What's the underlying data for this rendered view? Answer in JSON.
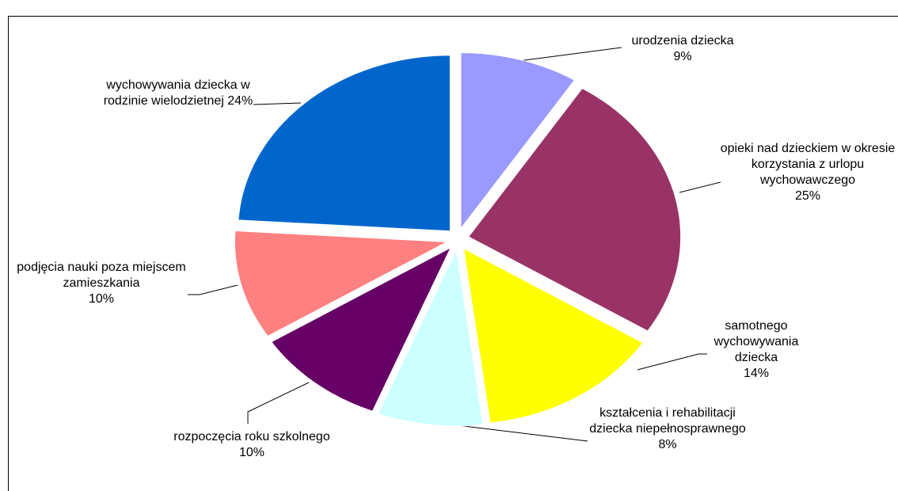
{
  "chart_data": {
    "type": "pie",
    "categories": [
      "urodzenia dziecka",
      "opieki nad dzieckiem w okresie korzystania z urlopu wychowawczego",
      "samotnego wychowywania dziecka",
      "kształcenia i rehabilitacji dziecka niepełnosprawnego",
      "rozpoczęcia roku szkolnego",
      "podjęcia nauki poza miejscem zamieszkania",
      "wychowywania dziecka w rodzinie wielodzietnej"
    ],
    "values": [
      9,
      25,
      14,
      8,
      10,
      10,
      24
    ],
    "value_labels": [
      "9%",
      "25%",
      "14%",
      "8%",
      "10%",
      "10%",
      "24%"
    ],
    "colors": [
      "#9999ff",
      "#993366",
      "#ffff00",
      "#ccffff",
      "#660066",
      "#ff8080",
      "#0066cc"
    ]
  }
}
